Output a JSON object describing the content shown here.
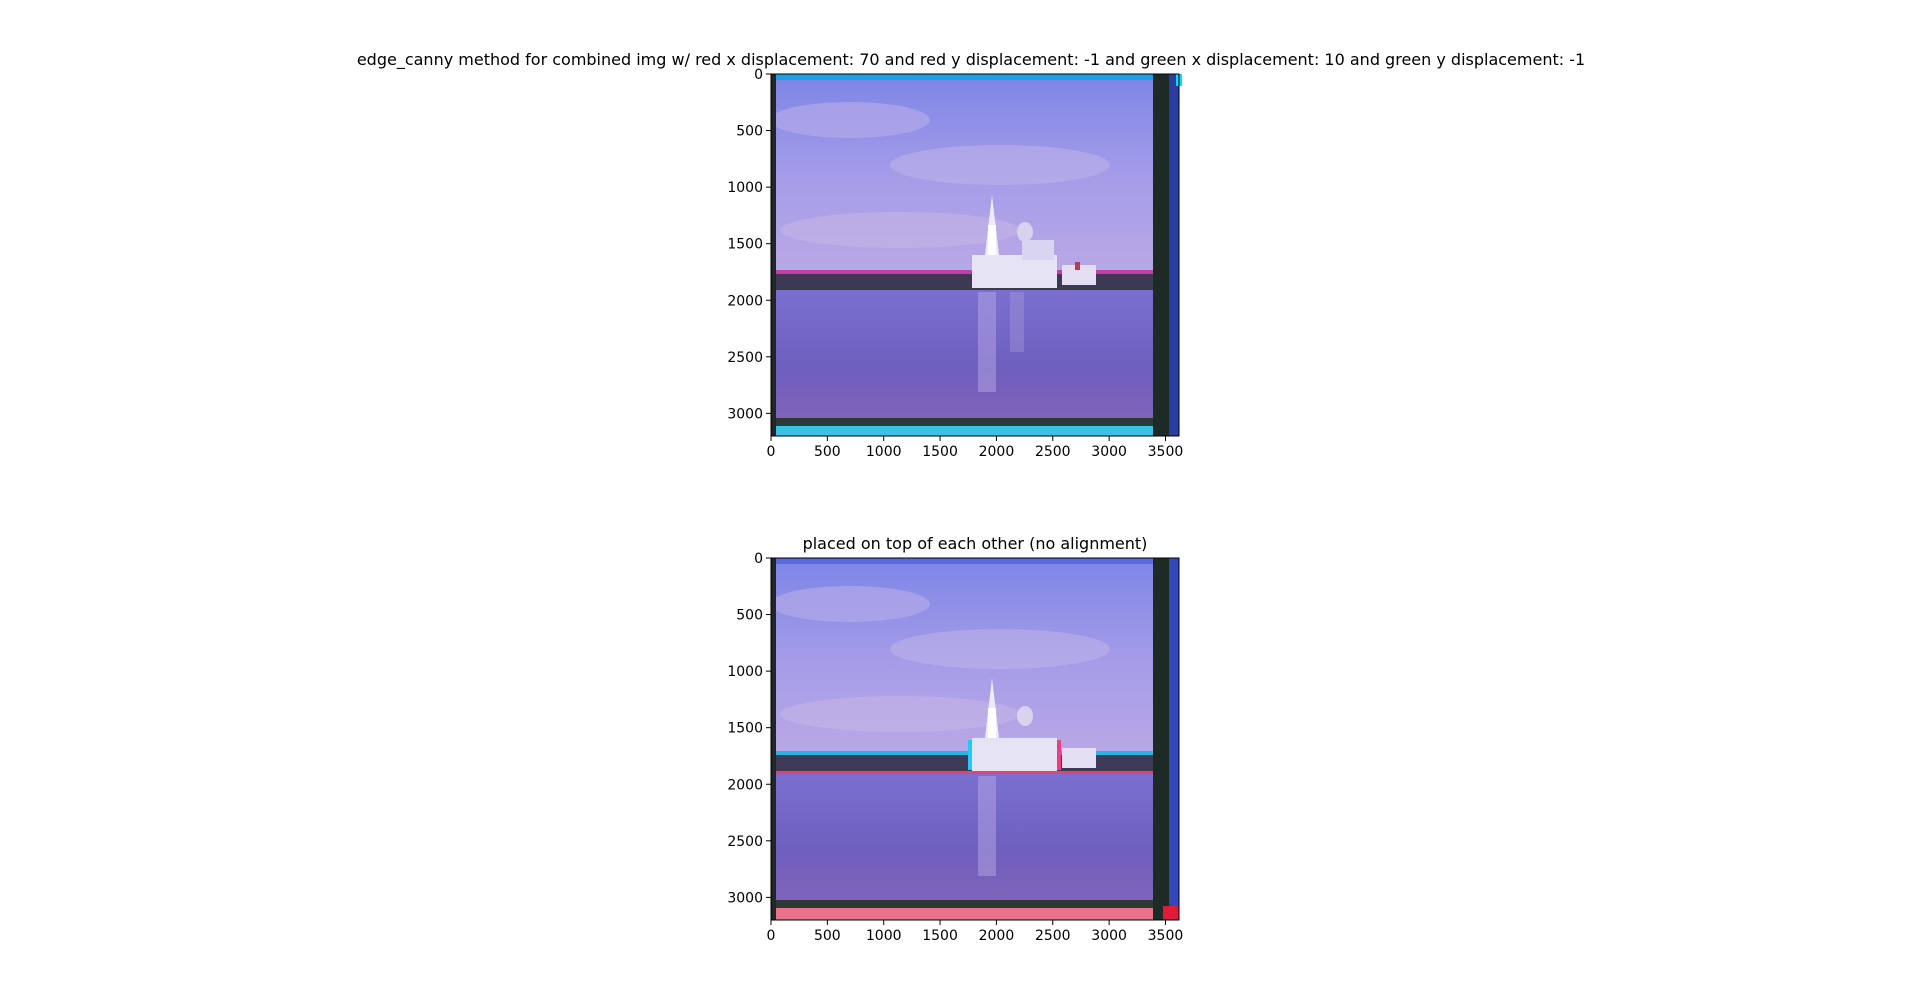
{
  "panels": [
    {
      "title": "edge_canny method for combined img w/ red x displacement: 70 and red y displacement: -1 and green x displacement: 10 and green y displacement: -1",
      "x_ticks": [
        "0",
        "500",
        "1000",
        "1500",
        "2000",
        "2500",
        "3000",
        "3500"
      ],
      "y_ticks": [
        "0",
        "500",
        "1000",
        "1500",
        "2000",
        "2500",
        "3000"
      ],
      "image_desc": "aligned-church-lake-photo"
    },
    {
      "title": "placed on top of each other (no alignment)",
      "x_ticks": [
        "0",
        "500",
        "1000",
        "1500",
        "2000",
        "2500",
        "3000",
        "3500"
      ],
      "y_ticks": [
        "0",
        "500",
        "1000",
        "1500",
        "2000",
        "2500",
        "3000"
      ],
      "image_desc": "unaligned-church-lake-photo"
    }
  ],
  "colors": {
    "sky": "#8a86e0",
    "water": "#6f67c0",
    "frame_dark": "#1e2a26",
    "edge_cyan": "#1fb6e8",
    "edge_red": "#e85a6a"
  }
}
